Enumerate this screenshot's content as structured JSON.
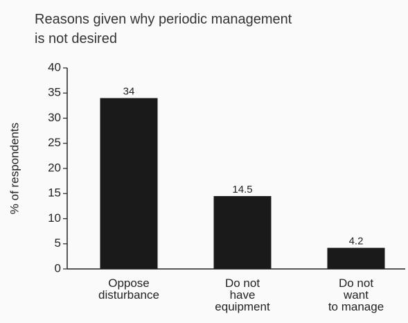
{
  "chart_data": {
    "type": "bar",
    "title": "Reasons given why periodic management\nis not desired",
    "y_label": "% of respondents",
    "categories": [
      "Oppose\ndisturbance",
      "Do not\nhave\nequipment",
      "Do not\nwant\nto manage"
    ],
    "values": [
      34,
      14.5,
      4.2
    ],
    "color": "#1a1a1a",
    "ylim": [
      0,
      40
    ],
    "yticks": [
      0,
      5,
      10,
      15,
      20,
      25,
      30,
      35,
      40
    ],
    "grid": false
  }
}
